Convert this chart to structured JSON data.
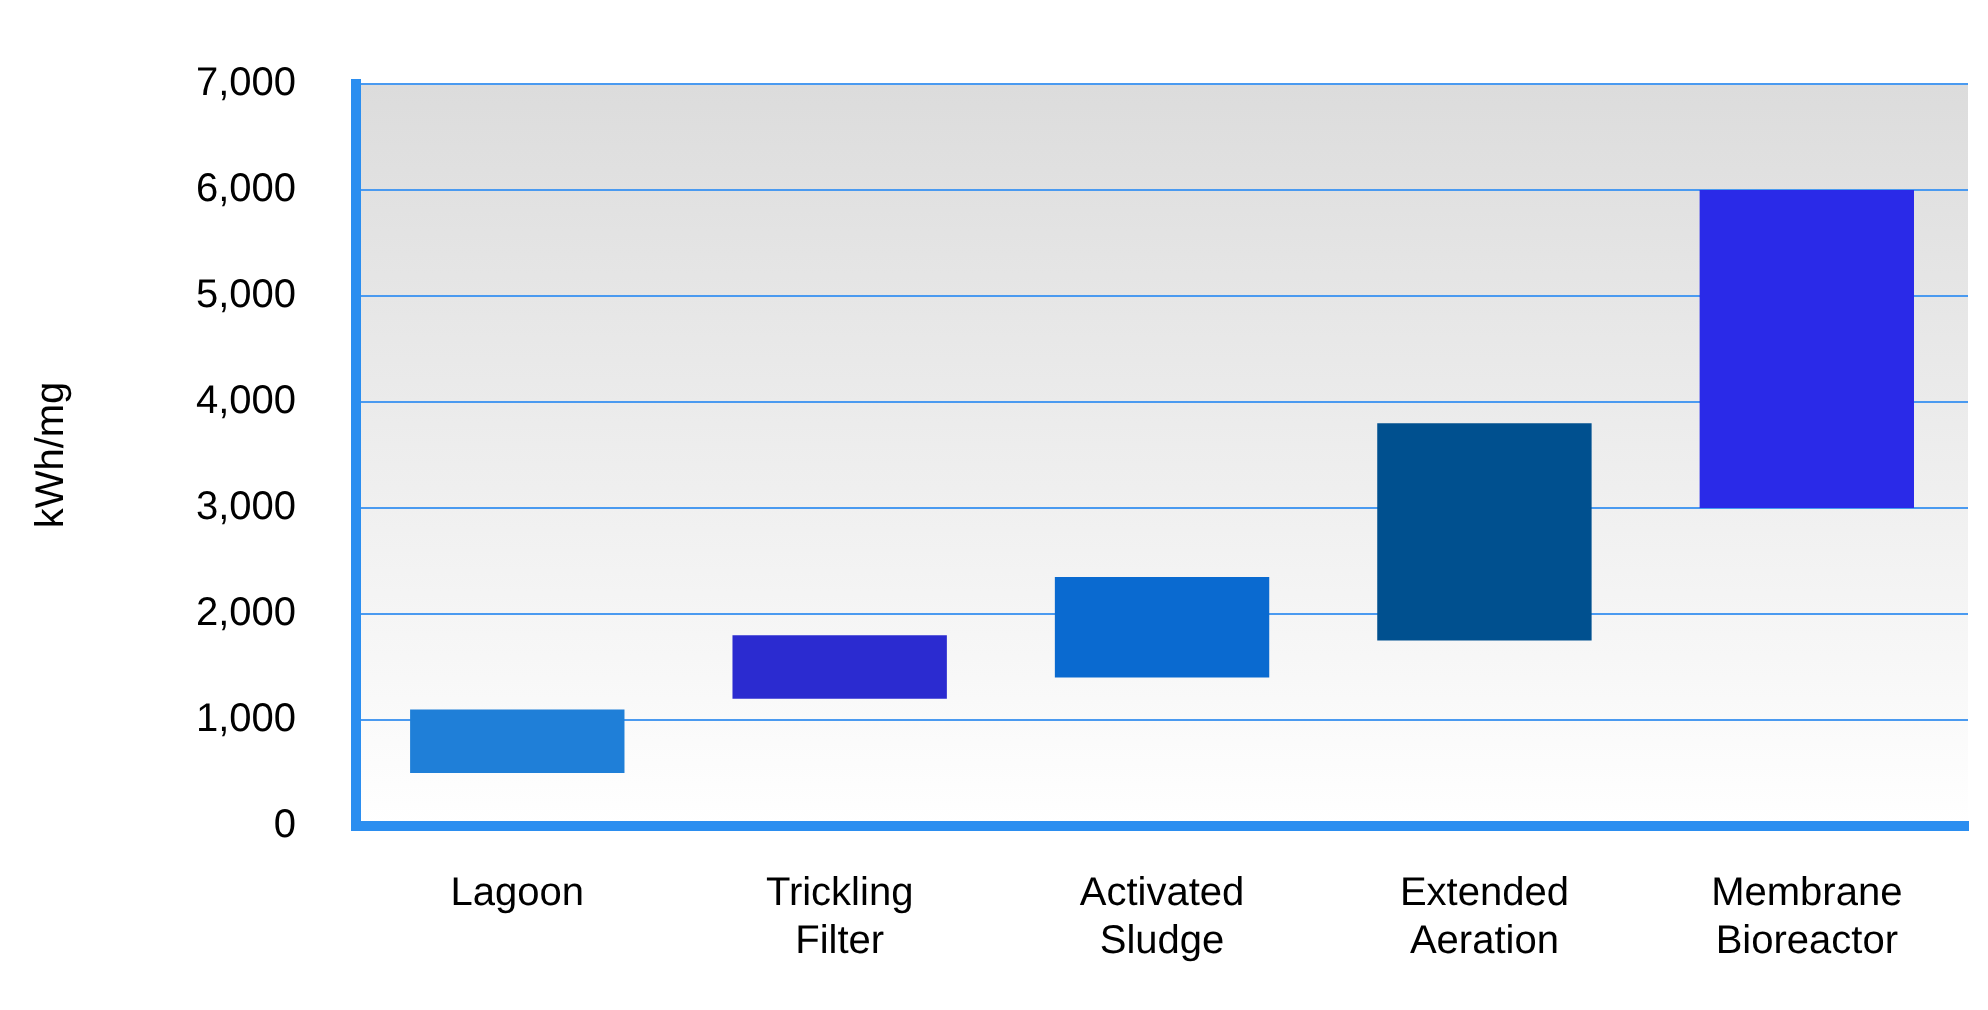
{
  "chart_data": {
    "type": "bar",
    "ylabel": "kWh/mg",
    "categories": [
      "Lagoon",
      "Trickling Filter",
      "Activated Sludge",
      "Extended Aeration",
      "Membrane Bioreactor"
    ],
    "base": [
      500,
      1200,
      1400,
      1750,
      3000
    ],
    "values": [
      600,
      600,
      950,
      2050,
      3000
    ],
    "colors": [
      "#1f7fd8",
      "#2b2bd0",
      "#0a6ad0",
      "#00508f",
      "#2a2ae8"
    ],
    "ylim": [
      0,
      7000
    ],
    "yticks": [
      {
        "value": 0,
        "label": "0"
      },
      {
        "value": 1000,
        "label": "1,000"
      },
      {
        "value": 2000,
        "label": "2,000"
      },
      {
        "value": 3000,
        "label": "3,000"
      },
      {
        "value": 4000,
        "label": "4,000"
      },
      {
        "value": 5000,
        "label": "5,000"
      },
      {
        "value": 6000,
        "label": "6,000"
      },
      {
        "value": 7000,
        "label": "7,000"
      }
    ],
    "grid": "y",
    "legend": false
  }
}
